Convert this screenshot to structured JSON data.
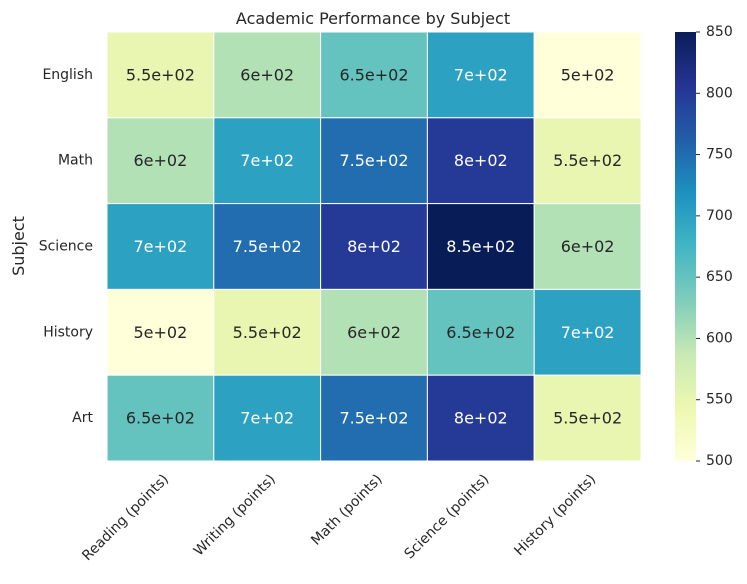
{
  "chart_data": {
    "type": "heatmap",
    "title": "Academic Performance by Subject",
    "xlabel": "",
    "ylabel": "Subject",
    "x_categories": [
      "Reading (points)",
      "Writing (points)",
      "Math (points)",
      "Science (points)",
      "History (points)"
    ],
    "y_categories": [
      "English",
      "Math",
      "Science",
      "History",
      "Art"
    ],
    "values": [
      [
        550,
        600,
        650,
        700,
        500
      ],
      [
        600,
        700,
        750,
        800,
        550
      ],
      [
        700,
        750,
        800,
        850,
        600
      ],
      [
        500,
        550,
        600,
        650,
        700
      ],
      [
        650,
        700,
        750,
        800,
        550
      ]
    ],
    "annotations": [
      [
        "5.5e+02",
        "6e+02",
        "6.5e+02",
        "7e+02",
        "5e+02"
      ],
      [
        "6e+02",
        "7e+02",
        "7.5e+02",
        "8e+02",
        "5.5e+02"
      ],
      [
        "7e+02",
        "7.5e+02",
        "8e+02",
        "8.5e+02",
        "6e+02"
      ],
      [
        "5e+02",
        "5.5e+02",
        "6e+02",
        "6.5e+02",
        "7e+02"
      ],
      [
        "6.5e+02",
        "7e+02",
        "7.5e+02",
        "8e+02",
        "5.5e+02"
      ]
    ],
    "colormap": "YlGnBu",
    "vmin": 500,
    "vmax": 850,
    "colorbar_ticks": [
      500,
      550,
      600,
      650,
      700,
      750,
      800,
      850
    ],
    "colorbar_tick_labels": [
      "500",
      "550",
      "600",
      "650",
      "700",
      "750",
      "800",
      "850"
    ],
    "cell_border_color": "#ffffff"
  }
}
